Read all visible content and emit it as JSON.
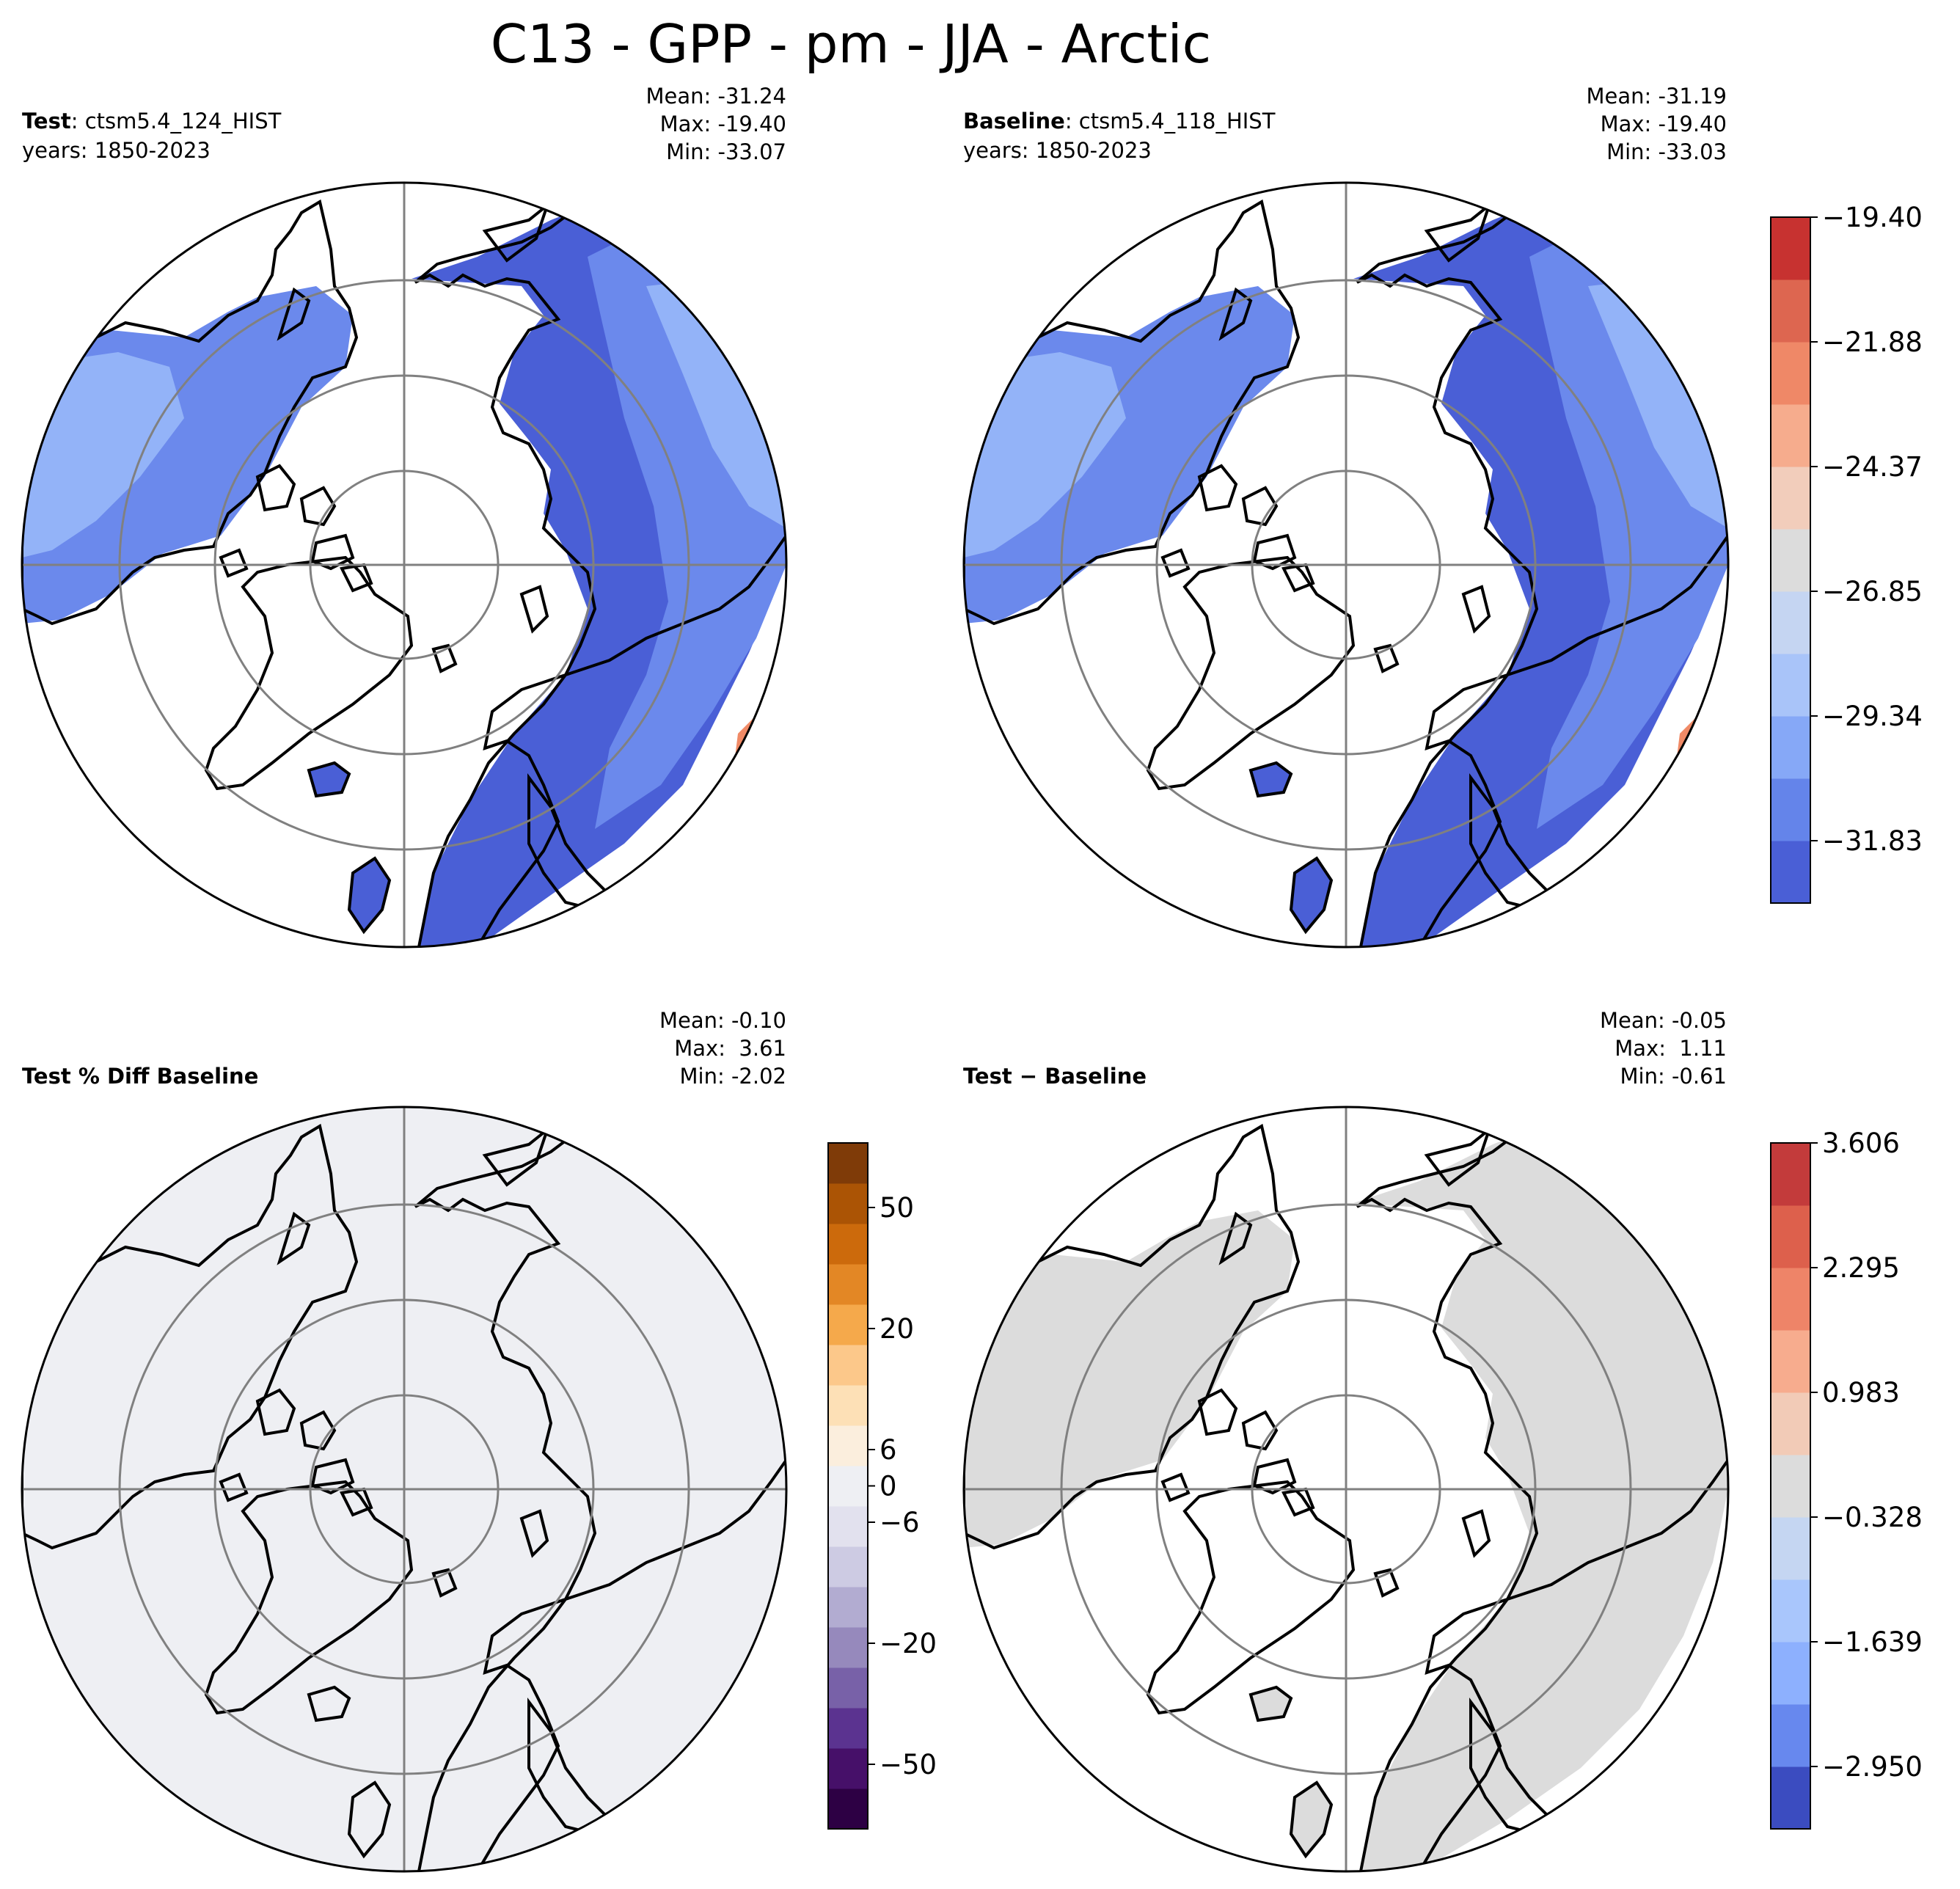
{
  "title": "C13 - GPP - pm - JJA - Arctic",
  "colors": {
    "ocean": "#ffffff",
    "coast": "#000000",
    "grid": "#808080",
    "cb_top": [
      "#4a5fd6",
      "#6484ea",
      "#86a8f7",
      "#a9c4f9",
      "#c5d5f2",
      "#dcdcdc",
      "#f2cdbb",
      "#f6ac8d",
      "#ef8867",
      "#dd6650",
      "#c73230"
    ],
    "cb_pct": [
      "#2d0044",
      "#461069",
      "#5b3390",
      "#7861a8",
      "#9689bc",
      "#b2acd1",
      "#cdcbe3",
      "#e2e1ee",
      "#eeeff3",
      "#fbeedd",
      "#fde0b6",
      "#fcc88a",
      "#f5a94b",
      "#e38725",
      "#cc6a0c",
      "#ab5405",
      "#7f3b08"
    ],
    "cb_diff": [
      "#3b4cc0",
      "#6788ee",
      "#8db0fe",
      "#a9c6fc",
      "#c5d6f2",
      "#dcdcdc",
      "#f2cbb7",
      "#f7ac8e",
      "#ee8468",
      "#dd604c",
      "#c33b3b"
    ],
    "field_low": "#4a5fd6",
    "field_mid": "#6b89ec",
    "field_high": "#93b3f8",
    "field_hot": "#f08a66",
    "pct_fill": "#eeeff3",
    "diff_fill": "#dcdcdc"
  },
  "panels": {
    "test": {
      "label_bold": "Test",
      "label_rest": ": ctsm5.4_124_HIST",
      "years": "years: 1850-2023",
      "stats": {
        "mean": "Mean: -31.24",
        "max": "Max: -19.40",
        "min": "Min: -33.07"
      }
    },
    "baseline": {
      "label_bold": "Baseline",
      "label_rest": ": ctsm5.4_118_HIST",
      "years": "years: 1850-2023",
      "stats": {
        "mean": "Mean: -31.19",
        "max": "Max: -19.40",
        "min": "Min: -33.03"
      }
    },
    "pct_diff": {
      "label_bold": "Test % Diff Baseline",
      "stats": {
        "mean": "Mean: -0.10",
        "max": "Max:  3.61",
        "min": "Min: -2.02"
      }
    },
    "diff": {
      "label_bold": "Test − Baseline",
      "stats": {
        "mean": "Mean: -0.05",
        "max": "Max:  1.11",
        "min": "Min: -0.61"
      }
    }
  },
  "colorbars": {
    "top": {
      "ticks": [
        "−19.40",
        "−21.88",
        "−24.37",
        "−26.85",
        "−29.34",
        "−31.83"
      ],
      "range": [
        -33.07,
        -19.4
      ]
    },
    "pct": {
      "ticks": [
        "50",
        "20",
        "6",
        "0",
        "−6",
        "−20",
        "−50"
      ],
      "range": [
        -70,
        70
      ]
    },
    "diff": {
      "ticks": [
        "3.606",
        "2.295",
        "0.983",
        "−0.328",
        "−1.639",
        "−2.950"
      ],
      "range": [
        -3.606,
        3.606
      ]
    }
  },
  "chart_data": [
    {
      "type": "heatmap",
      "title": "Test: ctsm5.4_124_HIST",
      "subtitle": "years: 1850-2023",
      "projection": "north polar stereographic",
      "region": "Arctic",
      "variable": "GPP",
      "season": "JJA",
      "mean": -31.24,
      "max": -19.4,
      "min": -33.07,
      "colorbar_ticks": [
        -19.4,
        -21.88,
        -24.37,
        -26.85,
        -29.34,
        -31.83
      ]
    },
    {
      "type": "heatmap",
      "title": "Baseline: ctsm5.4_118_HIST",
      "subtitle": "years: 1850-2023",
      "projection": "north polar stereographic",
      "region": "Arctic",
      "variable": "GPP",
      "season": "JJA",
      "mean": -31.19,
      "max": -19.4,
      "min": -33.03,
      "colorbar_ticks": [
        -19.4,
        -21.88,
        -24.37,
        -26.85,
        -29.34,
        -31.83
      ]
    },
    {
      "type": "heatmap",
      "title": "Test % Diff Baseline",
      "mean": -0.1,
      "max": 3.61,
      "min": -2.02,
      "colorbar_ticks": [
        50,
        20,
        6,
        0,
        -6,
        -20,
        -50
      ]
    },
    {
      "type": "heatmap",
      "title": "Test − Baseline",
      "mean": -0.05,
      "max": 1.11,
      "min": -0.61,
      "colorbar_ticks": [
        3.606,
        2.295,
        0.983,
        -0.328,
        -1.639,
        -2.95
      ]
    }
  ]
}
